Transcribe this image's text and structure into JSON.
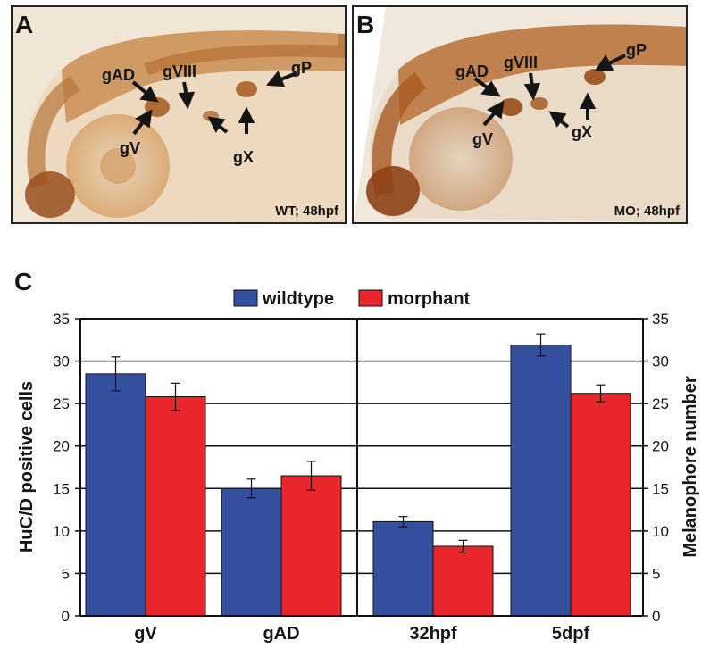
{
  "panels": [
    {
      "letter": "A",
      "caption": "WT; 48hpf",
      "labels": {
        "gAD": "gAD",
        "gVIII": "gVIII",
        "gP": "gP",
        "gV": "gV",
        "gX": "gX"
      }
    },
    {
      "letter": "B",
      "caption": "MO; 48hpf",
      "labels": {
        "gAD": "gAD",
        "gVIII": "gVIII",
        "gP": "gP",
        "gV": "gV",
        "gX": "gX"
      }
    }
  ],
  "panel_c_letter": "C",
  "colors": {
    "wildtype": "#3650a0",
    "morphant": "#e8262b",
    "stain": "#a9602a"
  },
  "chart_data": [
    {
      "type": "bar",
      "categories": [
        "gV",
        "gAD"
      ],
      "series": [
        {
          "name": "wildtype",
          "values": [
            28.5,
            15.0
          ],
          "errors": [
            2.0,
            1.1
          ]
        },
        {
          "name": "morphant",
          "values": [
            25.8,
            16.5
          ],
          "errors": [
            1.6,
            1.7
          ]
        }
      ],
      "ylabel": "HuC/D positive cells",
      "ylim": [
        0,
        35
      ],
      "yticks": [
        0,
        5,
        10,
        15,
        20,
        25,
        30,
        35
      ],
      "grid": true,
      "legend": "top-center"
    },
    {
      "type": "bar",
      "categories": [
        "32hpf",
        "5dpf"
      ],
      "series": [
        {
          "name": "wildtype",
          "values": [
            11.1,
            31.9
          ],
          "errors": [
            0.6,
            1.3
          ]
        },
        {
          "name": "morphant",
          "values": [
            8.2,
            26.2
          ],
          "errors": [
            0.7,
            1.0
          ]
        }
      ],
      "ylabel": "Melanophore number",
      "ylim": [
        0,
        35
      ],
      "yticks": [
        0,
        5,
        10,
        15,
        20,
        25,
        30,
        35
      ],
      "grid": true,
      "legend": "top-center"
    }
  ]
}
